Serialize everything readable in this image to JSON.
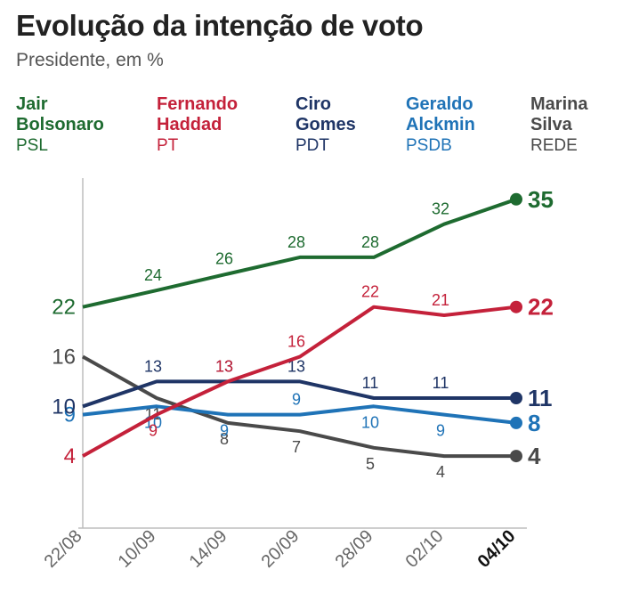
{
  "header": {
    "title": "Evolução da intenção de voto",
    "subtitle": "Presidente, em %"
  },
  "legend": [
    {
      "first": "Jair",
      "last": "Bolsonaro",
      "party": "PSL",
      "color": "#1e6b30"
    },
    {
      "first": "Fernando",
      "last": "Haddad",
      "party": "PT",
      "color": "#c4213a"
    },
    {
      "first": "Ciro",
      "last": "Gomes",
      "party": "PDT",
      "color": "#1f3566"
    },
    {
      "first": "Geraldo",
      "last": "Alckmin",
      "party": "PSDB",
      "color": "#1f73b7"
    },
    {
      "first": "Marina",
      "last": "Silva",
      "party": "REDE",
      "color": "#4a4a4a"
    }
  ],
  "chart_data": {
    "type": "line",
    "x": [
      "22/08",
      "10/09",
      "14/09",
      "20/09",
      "28/09",
      "02/10",
      "04/10"
    ],
    "grid": false,
    "series": [
      {
        "name": "Jair Bolsonaro",
        "color": "#1e6b30",
        "values": [
          22,
          24,
          26,
          28,
          28,
          32,
          35
        ]
      },
      {
        "name": "Fernando Haddad",
        "color": "#c4213a",
        "values": [
          4,
          9,
          13,
          16,
          22,
          21,
          22
        ]
      },
      {
        "name": "Ciro Gomes",
        "color": "#1f3566",
        "values": [
          10,
          13,
          13,
          13,
          11,
          11,
          11
        ]
      },
      {
        "name": "Geraldo Alckmin",
        "color": "#1f73b7",
        "values": [
          9,
          10,
          9,
          9,
          10,
          9,
          8
        ]
      },
      {
        "name": "Marina Silva",
        "color": "#4a4a4a",
        "values": [
          16,
          11,
          8,
          7,
          5,
          4,
          4
        ]
      }
    ]
  }
}
